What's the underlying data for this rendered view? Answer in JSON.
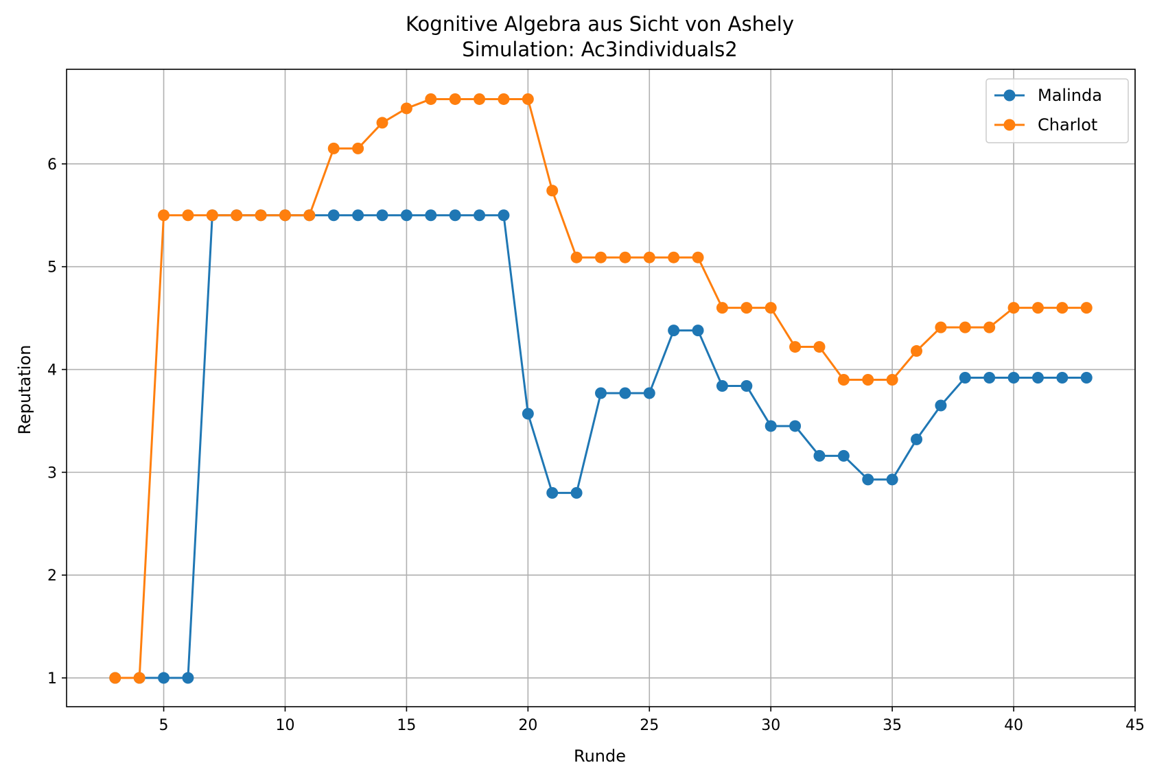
{
  "chart_data": {
    "type": "line",
    "title": "Kognitive Algebra aus Sicht von Ashely",
    "subtitle": "Simulation: Ac3individuals2",
    "xlabel": "Runde",
    "ylabel": "Reputation",
    "xlim": [
      1,
      45
    ],
    "ylim": [
      0.72,
      6.92
    ],
    "xticks": [
      5,
      10,
      15,
      20,
      25,
      30,
      35,
      40,
      45
    ],
    "yticks": [
      1,
      2,
      3,
      4,
      5,
      6
    ],
    "grid": true,
    "legend_position": "top-right",
    "series": [
      {
        "name": "Malinda",
        "color": "#1f77b4",
        "points": [
          [
            3,
            1.0
          ],
          [
            4,
            1.0
          ],
          [
            5,
            1.0
          ],
          [
            6,
            1.0
          ],
          [
            7,
            5.5
          ],
          [
            8,
            5.5
          ],
          [
            9,
            5.5
          ],
          [
            10,
            5.5
          ],
          [
            11,
            5.5
          ],
          [
            12,
            5.5
          ],
          [
            13,
            5.5
          ],
          [
            14,
            5.5
          ],
          [
            15,
            5.5
          ],
          [
            16,
            5.5
          ],
          [
            17,
            5.5
          ],
          [
            18,
            5.5
          ],
          [
            19,
            5.5
          ],
          [
            20,
            3.57
          ],
          [
            21,
            2.8
          ],
          [
            22,
            2.8
          ],
          [
            23,
            3.77
          ],
          [
            24,
            3.77
          ],
          [
            25,
            3.77
          ],
          [
            26,
            4.38
          ],
          [
            27,
            4.38
          ],
          [
            28,
            3.84
          ],
          [
            29,
            3.84
          ],
          [
            30,
            3.45
          ],
          [
            31,
            3.45
          ],
          [
            32,
            3.16
          ],
          [
            33,
            3.16
          ],
          [
            34,
            2.93
          ],
          [
            35,
            2.93
          ],
          [
            36,
            3.32
          ],
          [
            37,
            3.65
          ],
          [
            38,
            3.92
          ],
          [
            39,
            3.92
          ],
          [
            40,
            3.92
          ],
          [
            41,
            3.92
          ],
          [
            42,
            3.92
          ],
          [
            43,
            3.92
          ]
        ]
      },
      {
        "name": "Charlot",
        "color": "#ff7f0e",
        "points": [
          [
            3,
            1.0
          ],
          [
            4,
            1.0
          ],
          [
            5,
            5.5
          ],
          [
            6,
            5.5
          ],
          [
            7,
            5.5
          ],
          [
            8,
            5.5
          ],
          [
            9,
            5.5
          ],
          [
            10,
            5.5
          ],
          [
            11,
            5.5
          ],
          [
            12,
            6.15
          ],
          [
            13,
            6.15
          ],
          [
            14,
            6.4
          ],
          [
            15,
            6.54
          ],
          [
            16,
            6.63
          ],
          [
            17,
            6.63
          ],
          [
            18,
            6.63
          ],
          [
            19,
            6.63
          ],
          [
            20,
            6.63
          ],
          [
            21,
            5.74
          ],
          [
            22,
            5.09
          ],
          [
            23,
            5.09
          ],
          [
            24,
            5.09
          ],
          [
            25,
            5.09
          ],
          [
            26,
            5.09
          ],
          [
            27,
            5.09
          ],
          [
            28,
            4.6
          ],
          [
            29,
            4.6
          ],
          [
            30,
            4.6
          ],
          [
            31,
            4.22
          ],
          [
            32,
            4.22
          ],
          [
            33,
            3.9
          ],
          [
            34,
            3.9
          ],
          [
            35,
            3.9
          ],
          [
            36,
            4.18
          ],
          [
            37,
            4.41
          ],
          [
            38,
            4.41
          ],
          [
            39,
            4.41
          ],
          [
            40,
            4.6
          ],
          [
            41,
            4.6
          ],
          [
            42,
            4.6
          ],
          [
            43,
            4.6
          ]
        ]
      }
    ]
  }
}
